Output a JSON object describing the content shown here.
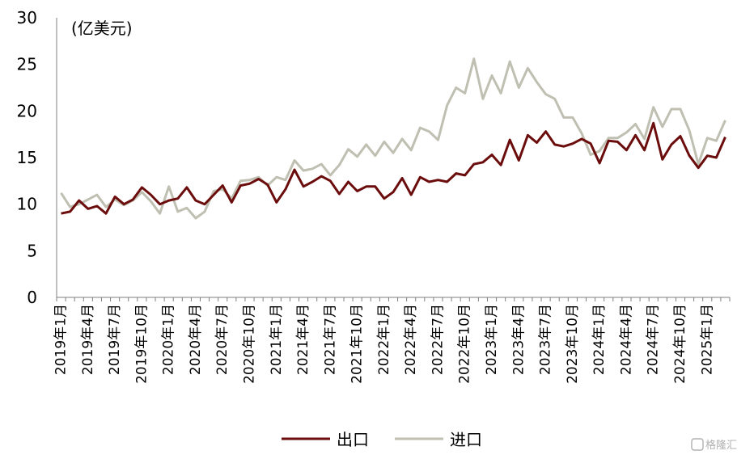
{
  "chart_data": {
    "type": "line",
    "title": "",
    "unit_label": "(亿美元)",
    "xlabel": "",
    "ylabel": "",
    "ylim": [
      0,
      30
    ],
    "yticks": [
      0,
      5,
      10,
      15,
      20,
      25,
      30
    ],
    "x": [
      "2019年1月",
      "2019年2月",
      "2019年3月",
      "2019年4月",
      "2019年5月",
      "2019年6月",
      "2019年7月",
      "2019年8月",
      "2019年9月",
      "2019年10月",
      "2019年11月",
      "2019年12月",
      "2020年1月",
      "2020年2月",
      "2020年3月",
      "2020年4月",
      "2020年5月",
      "2020年6月",
      "2020年7月",
      "2020年8月",
      "2020年9月",
      "2020年10月",
      "2020年11月",
      "2020年12月",
      "2021年1月",
      "2021年2月",
      "2021年3月",
      "2021年4月",
      "2021年5月",
      "2021年6月",
      "2021年7月",
      "2021年8月",
      "2021年9月",
      "2021年10月",
      "2021年11月",
      "2021年12月",
      "2022年1月",
      "2022年2月",
      "2022年3月",
      "2022年4月",
      "2022年5月",
      "2022年6月",
      "2022年7月",
      "2022年8月",
      "2022年9月",
      "2022年10月",
      "2022年11月",
      "2022年12月",
      "2023年1月",
      "2023年2月",
      "2023年3月",
      "2023年4月",
      "2023年5月",
      "2023年6月",
      "2023年7月",
      "2023年8月",
      "2023年9月",
      "2023年10月",
      "2023年11月",
      "2023年12月",
      "2024年1月",
      "2024年2月",
      "2024年3月",
      "2024年4月",
      "2024年5月",
      "2024年6月",
      "2024年7月",
      "2024年8月",
      "2024年9月",
      "2024年10月",
      "2024年11月",
      "2024年12月",
      "2025年1月",
      "2025年2月",
      "2025年3月"
    ],
    "xtick_labels": [
      "2019年1月",
      "2019年4月",
      "2019年7月",
      "2019年10月",
      "2020年1月",
      "2020年4月",
      "2020年7月",
      "2020年10月",
      "2021年1月",
      "2021年4月",
      "2021年7月",
      "2021年10月",
      "2022年1月",
      "2022年4月",
      "2022年7月",
      "2022年10月",
      "2023年1月",
      "2023年4月",
      "2023年7月",
      "2023年10月",
      "2024年1月",
      "2024年4月",
      "2024年7月",
      "2024年10月",
      "2025年1月"
    ],
    "legend_position": "bottom",
    "grid": false,
    "series": [
      {
        "name": "出口",
        "color": "#6b0d0d",
        "values": [
          9.0,
          9.2,
          10.4,
          9.5,
          9.8,
          9.0,
          10.8,
          10.0,
          10.5,
          11.8,
          11.0,
          10.0,
          10.4,
          10.6,
          11.8,
          10.4,
          10.0,
          11.0,
          12.0,
          10.2,
          12.0,
          12.2,
          12.7,
          12.1,
          10.2,
          11.6,
          13.7,
          11.9,
          12.4,
          13.0,
          12.5,
          11.1,
          12.4,
          11.4,
          11.9,
          11.9,
          10.6,
          11.3,
          12.8,
          11.0,
          12.9,
          12.4,
          12.6,
          12.4,
          13.3,
          13.1,
          14.3,
          14.5,
          15.3,
          14.2,
          16.9,
          14.7,
          17.4,
          16.6,
          17.8,
          16.4,
          16.2,
          16.5,
          17.0,
          16.5,
          14.4,
          16.8,
          16.7,
          15.8,
          17.4,
          15.8,
          18.7,
          14.8,
          16.4,
          17.3,
          15.2,
          13.9,
          15.2,
          15.0,
          17.2
        ]
      },
      {
        "name": "进口",
        "color": "#bfbfb2",
        "values": [
          11.2,
          9.7,
          10.0,
          10.5,
          11.0,
          9.7,
          10.5,
          9.9,
          10.4,
          11.3,
          10.3,
          9.0,
          11.9,
          9.2,
          9.6,
          8.5,
          9.2,
          11.4,
          11.6,
          10.6,
          12.5,
          12.6,
          12.9,
          12.0,
          12.9,
          12.6,
          14.7,
          13.6,
          13.8,
          14.3,
          13.1,
          14.2,
          15.9,
          15.1,
          16.4,
          15.2,
          16.7,
          15.5,
          17.0,
          15.8,
          18.2,
          17.8,
          16.9,
          20.6,
          22.5,
          21.9,
          25.6,
          21.3,
          23.8,
          21.9,
          25.3,
          22.5,
          24.6,
          23.1,
          21.8,
          21.3,
          19.3,
          19.3,
          17.6,
          15.3,
          15.7,
          17.1,
          17.1,
          17.7,
          18.6,
          17.0,
          20.4,
          18.3,
          20.2,
          20.2,
          17.9,
          14.3,
          17.1,
          16.8,
          19.0
        ]
      }
    ]
  },
  "watermark": "格隆汇"
}
